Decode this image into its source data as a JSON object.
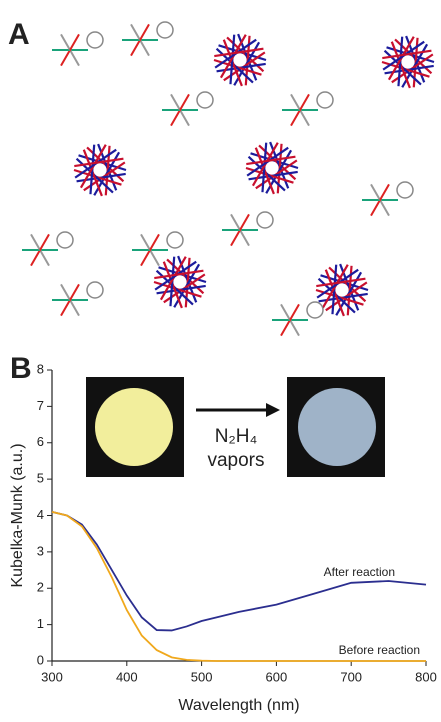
{
  "panel_a": {
    "label": "A"
  },
  "chart_data": {
    "type": "line",
    "panel_label": "B",
    "x_label": "Wavelength (nm)",
    "y_label": "Kubelka-Munk (a.u.)",
    "x": [
      300,
      320,
      340,
      360,
      380,
      400,
      420,
      440,
      460,
      480,
      500,
      520,
      550,
      600,
      650,
      700,
      750,
      800
    ],
    "series": [
      {
        "name": "After reaction",
        "color": "#2b2e8f",
        "values": [
          4.1,
          4.0,
          3.75,
          3.2,
          2.5,
          1.8,
          1.2,
          0.85,
          0.84,
          0.95,
          1.1,
          1.2,
          1.35,
          1.55,
          1.85,
          2.15,
          2.2,
          2.1
        ]
      },
      {
        "name": "Before reaction",
        "color": "#f0a81c",
        "values": [
          4.1,
          4.0,
          3.7,
          3.1,
          2.3,
          1.4,
          0.7,
          0.3,
          0.1,
          0.03,
          0.01,
          0,
          0,
          0,
          0,
          0,
          0,
          0
        ]
      }
    ],
    "xlim": [
      300,
      800
    ],
    "ylim": [
      0,
      8
    ],
    "xticks": [
      300,
      400,
      500,
      600,
      700,
      800
    ],
    "yticks": [
      0,
      1,
      2,
      3,
      4,
      5,
      6,
      7,
      8
    ],
    "inset": {
      "reagent": "N₂H₄",
      "condition": "vapors"
    }
  }
}
